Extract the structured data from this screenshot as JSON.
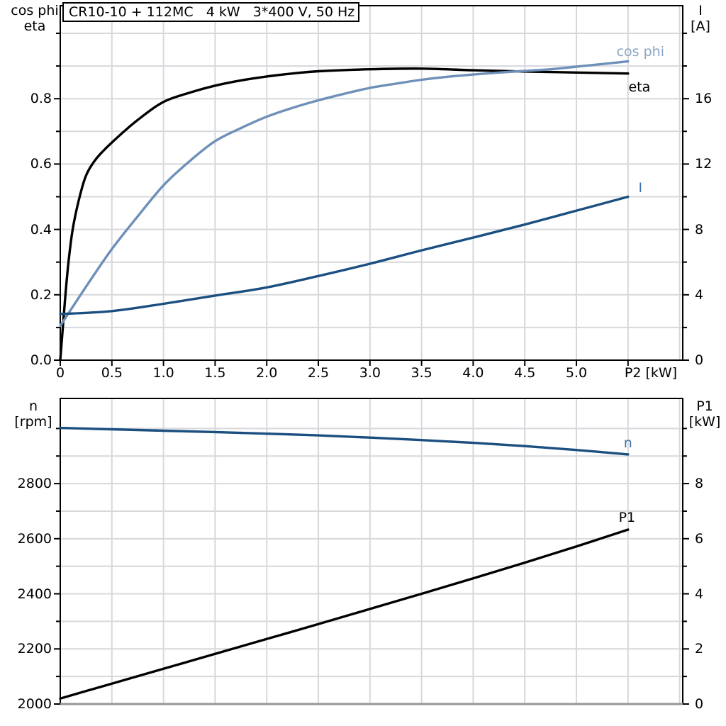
{
  "page_title": "CR10-10 + 112MC   4 kW   3*400 V, 50 Hz",
  "colors": {
    "black_curve": "#000000",
    "light_blue_curve": "#6e90b8",
    "dark_blue_curve": "#1b4f80",
    "blue_label": "#3c6eaa",
    "light_blue_label": "#8aa6c6",
    "grid": "#d6d8dc",
    "bottom_border_gray": "#969696"
  },
  "chart_data": [
    {
      "type": "line",
      "title": "CR10-10 + 112MC   4 kW   3*400 V, 50 Hz",
      "x_axis": {
        "label": "P2 [kW]",
        "min": 0,
        "max": 6.03,
        "grid_step": 0.5,
        "tick_max": 5.5,
        "tick_labels": [
          "0",
          "0.5",
          "1.0",
          "1.5",
          "2.0",
          "2.5",
          "3.0",
          "3.5",
          "4.0",
          "4.5",
          "5.0"
        ],
        "show_labels": true
      },
      "y_left": {
        "title_line1": "cos phi",
        "title_line2": "eta",
        "min": 0,
        "max": 1.0846,
        "grid_step": 0.1,
        "label_step": 0.2,
        "tick_labels": [
          "0.0",
          "0.2",
          "0.4",
          "0.6",
          "0.8"
        ]
      },
      "y_right": {
        "title_line1": "I",
        "title_line2": "[A]",
        "min": 0,
        "max": 21.69,
        "grid_step": 2,
        "label_step": 4,
        "tick_labels": [
          "0",
          "4",
          "8",
          "12",
          "16"
        ]
      },
      "series": [
        {
          "name": "eta",
          "axis": "left",
          "color": "#000000",
          "label": "eta",
          "label_color": "#000000",
          "label_at": [
            5.61,
            0.835
          ],
          "points": [
            [
              0,
              0
            ],
            [
              0.02,
              0.08
            ],
            [
              0.05,
              0.2
            ],
            [
              0.08,
              0.3
            ],
            [
              0.12,
              0.4
            ],
            [
              0.18,
              0.49
            ],
            [
              0.25,
              0.565
            ],
            [
              0.35,
              0.617
            ],
            [
              0.5,
              0.666
            ],
            [
              0.75,
              0.735
            ],
            [
              1.0,
              0.79
            ],
            [
              1.25,
              0.818
            ],
            [
              1.5,
              0.84
            ],
            [
              1.75,
              0.856
            ],
            [
              2.0,
              0.868
            ],
            [
              2.25,
              0.877
            ],
            [
              2.5,
              0.884
            ],
            [
              3.0,
              0.89
            ],
            [
              3.5,
              0.892
            ],
            [
              4.0,
              0.887
            ],
            [
              4.5,
              0.883
            ],
            [
              5.0,
              0.88
            ],
            [
              5.5,
              0.877
            ]
          ]
        },
        {
          "name": "cos phi",
          "axis": "left",
          "color": "#6e90b8",
          "label": "cos phi",
          "label_color": "#8aa6c6",
          "label_at": [
            5.62,
            0.944
          ],
          "points": [
            [
              0,
              0.105
            ],
            [
              0.25,
              0.225
            ],
            [
              0.5,
              0.34
            ],
            [
              0.75,
              0.44
            ],
            [
              1.0,
              0.535
            ],
            [
              1.25,
              0.608
            ],
            [
              1.5,
              0.67
            ],
            [
              1.75,
              0.71
            ],
            [
              2.0,
              0.745
            ],
            [
              2.25,
              0.772
            ],
            [
              2.5,
              0.795
            ],
            [
              2.75,
              0.815
            ],
            [
              3.0,
              0.833
            ],
            [
              3.25,
              0.846
            ],
            [
              3.5,
              0.858
            ],
            [
              3.75,
              0.867
            ],
            [
              4.0,
              0.874
            ],
            [
              4.25,
              0.88
            ],
            [
              4.5,
              0.885
            ],
            [
              4.75,
              0.89
            ],
            [
              5.0,
              0.898
            ],
            [
              5.25,
              0.906
            ],
            [
              5.5,
              0.914
            ]
          ]
        },
        {
          "name": "I",
          "axis": "right",
          "color": "#1b4f80",
          "label": "I",
          "label_color": "#3c6eaa",
          "label_at": [
            5.62,
            10.55
          ],
          "points": [
            [
              0,
              2.82
            ],
            [
              0.5,
              3.0
            ],
            [
              1.0,
              3.45
            ],
            [
              1.5,
              3.95
            ],
            [
              2.0,
              4.45
            ],
            [
              2.5,
              5.15
            ],
            [
              3.0,
              5.9
            ],
            [
              3.5,
              6.72
            ],
            [
              4.0,
              7.5
            ],
            [
              4.5,
              8.3
            ],
            [
              5.0,
              9.15
            ],
            [
              5.5,
              10.0
            ]
          ]
        }
      ]
    },
    {
      "type": "line",
      "x_axis": {
        "label": "",
        "min": 0,
        "max": 6.03,
        "grid_step": 0.5,
        "tick_max": 5.5,
        "tick_labels": [],
        "show_labels": false
      },
      "y_left": {
        "title_line1": "n",
        "title_line2": "[rpm]",
        "min": 2000,
        "max": 3109,
        "grid_step": 100,
        "label_step": 200,
        "tick_labels": [
          "2000",
          "2200",
          "2400",
          "2600",
          "2800"
        ]
      },
      "y_right": {
        "title_line1": "P1",
        "title_line2": "[kW]",
        "min": 0,
        "max": 11.09,
        "grid_step": 1,
        "label_step": 2,
        "tick_labels": [
          "0",
          "2",
          "4",
          "6",
          "8"
        ]
      },
      "series": [
        {
          "name": "n",
          "axis": "left",
          "color": "#1b4f80",
          "label": "n",
          "label_color": "#3c6eaa",
          "label_at": [
            5.5,
            2947
          ],
          "points": [
            [
              0,
              3002
            ],
            [
              0.5,
              2997
            ],
            [
              1.0,
              2992
            ],
            [
              1.5,
              2987
            ],
            [
              2.0,
              2981
            ],
            [
              2.5,
              2975
            ],
            [
              3.0,
              2967
            ],
            [
              3.5,
              2958
            ],
            [
              4.0,
              2948
            ],
            [
              4.5,
              2936
            ],
            [
              5.0,
              2922
            ],
            [
              5.5,
              2906
            ]
          ]
        },
        {
          "name": "P1",
          "axis": "right",
          "color": "#000000",
          "label": "P1",
          "label_color": "#000000",
          "label_at": [
            5.49,
            6.76
          ],
          "points": [
            [
              0,
              0.2
            ],
            [
              0.5,
              0.74
            ],
            [
              1.0,
              1.28
            ],
            [
              1.5,
              1.82
            ],
            [
              2.0,
              2.36
            ],
            [
              2.5,
              2.9
            ],
            [
              3.0,
              3.45
            ],
            [
              3.5,
              4.0
            ],
            [
              4.0,
              4.56
            ],
            [
              4.5,
              5.13
            ],
            [
              5.0,
              5.72
            ],
            [
              5.5,
              6.33
            ]
          ]
        }
      ]
    }
  ]
}
